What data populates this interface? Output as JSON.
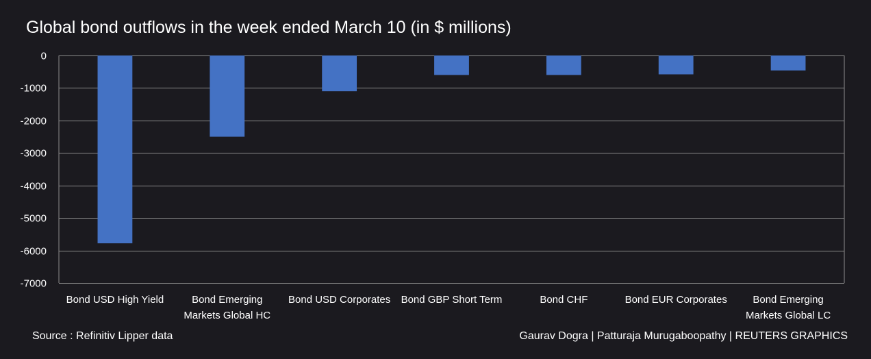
{
  "chart_data": {
    "type": "bar",
    "title": "Global bond outflows in the week ended March 10 (in $ millions)",
    "categories": [
      [
        "Bond USD High Yield"
      ],
      [
        "Bond Emerging",
        "Markets Global HC"
      ],
      [
        "Bond USD Corporates"
      ],
      [
        "Bond GBP Short Term"
      ],
      [
        "Bond CHF"
      ],
      [
        "Bond EUR Corporates"
      ],
      [
        "Bond Emerging",
        "Markets Global LC"
      ]
    ],
    "values": [
      -5780,
      -2500,
      -1100,
      -600,
      -600,
      -580,
      -460
    ],
    "ylim": [
      -7000,
      0
    ],
    "yticks": [
      0,
      -1000,
      -2000,
      -3000,
      -4000,
      -5000,
      -6000,
      -7000
    ],
    "grid": true,
    "bar_color": "#4472c4",
    "grid_color": "#8c8c8c"
  },
  "footer": {
    "source": "Source : Refinitiv Lipper data",
    "credit": "Gaurav Dogra | Patturaja Murugaboopathy | REUTERS GRAPHICS"
  },
  "colors": {
    "background": "#1b1a1f",
    "text": "#ffffff"
  }
}
